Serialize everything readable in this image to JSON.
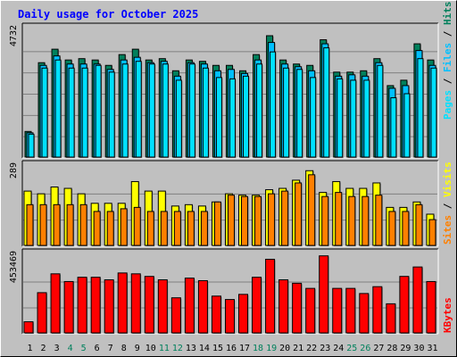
{
  "title": "Daily usage for October 2025",
  "legend": {
    "top": {
      "pages": "Pages",
      "sep1": " / ",
      "files": "Files",
      "sep2": " / ",
      "hits": "Hits"
    },
    "middle": {
      "sites": "Sites",
      "sep": " / ",
      "visits": "Visits"
    },
    "bottom": {
      "kbytes": "KBytes"
    }
  },
  "colors": {
    "background": "#c0c0c0",
    "plot": "#c0c0c0",
    "title": "#0000ff",
    "hits": "#00805c",
    "files": "#00c0ff",
    "pages": "#00e0ff",
    "visits": "#ffff00",
    "sites": "#ff8000",
    "kbytes": "#ff0000",
    "weekday_label": "#000000",
    "weekend_label": "#00805c"
  },
  "chart_data": [
    {
      "type": "bar",
      "name": "hits-files-pages",
      "ymax_label": "4732",
      "ylim": [
        0,
        4732
      ],
      "categories": [
        "1",
        "2",
        "3",
        "4",
        "5",
        "6",
        "7",
        "8",
        "9",
        "10",
        "11",
        "12",
        "13",
        "14",
        "15",
        "16",
        "17",
        "18",
        "19",
        "20",
        "21",
        "22",
        "23",
        "24",
        "25",
        "26",
        "27",
        "28",
        "29",
        "30",
        "31"
      ],
      "weekend_days": [
        4,
        5,
        11,
        12,
        18,
        19,
        25,
        26
      ],
      "series": [
        {
          "name": "Hits",
          "values": [
            950,
            3500,
            4000,
            3600,
            3650,
            3600,
            3400,
            3800,
            4000,
            3600,
            3650,
            3200,
            3600,
            3550,
            3400,
            3400,
            3200,
            3800,
            4500,
            3600,
            3450,
            3400,
            4350,
            3150,
            3150,
            3200,
            3650,
            2650,
            2850,
            4200,
            3600
          ]
        },
        {
          "name": "Files",
          "values": [
            900,
            3400,
            3750,
            3450,
            3450,
            3450,
            3250,
            3600,
            3700,
            3500,
            3550,
            3000,
            3500,
            3450,
            3200,
            3250,
            3100,
            3600,
            4250,
            3450,
            3350,
            3200,
            4200,
            3000,
            3050,
            3000,
            3500,
            2550,
            2650,
            3950,
            3400
          ]
        },
        {
          "name": "Pages",
          "values": [
            850,
            3300,
            3600,
            3300,
            3300,
            3400,
            3150,
            3450,
            3550,
            3450,
            3450,
            2850,
            3450,
            3300,
            2950,
            2900,
            3000,
            3450,
            3900,
            3300,
            3250,
            2950,
            4050,
            2900,
            2850,
            2850,
            3400,
            2200,
            2350,
            3650,
            3300
          ]
        }
      ]
    },
    {
      "type": "bar",
      "name": "visits-sites",
      "ymax_label": "289",
      "ylim": [
        0,
        289
      ],
      "categories": [
        "1",
        "2",
        "3",
        "4",
        "5",
        "6",
        "7",
        "8",
        "9",
        "10",
        "11",
        "12",
        "13",
        "14",
        "15",
        "16",
        "17",
        "18",
        "19",
        "20",
        "21",
        "22",
        "23",
        "24",
        "25",
        "26",
        "27",
        "28",
        "29",
        "30",
        "31"
      ],
      "series": [
        {
          "name": "Visits",
          "values": [
            200,
            190,
            215,
            210,
            190,
            155,
            155,
            155,
            235,
            200,
            200,
            145,
            150,
            145,
            160,
            190,
            185,
            185,
            205,
            210,
            240,
            275,
            195,
            235,
            210,
            210,
            230,
            140,
            140,
            160,
            115
          ]
        },
        {
          "name": "Sites",
          "values": [
            150,
            150,
            150,
            150,
            150,
            125,
            125,
            135,
            140,
            125,
            125,
            125,
            125,
            125,
            160,
            185,
            180,
            180,
            190,
            200,
            230,
            260,
            180,
            195,
            180,
            180,
            185,
            125,
            125,
            150,
            95
          ]
        }
      ]
    },
    {
      "type": "bar",
      "name": "kbytes",
      "ymax_label": "453469",
      "ylim": [
        0,
        453469
      ],
      "categories": [
        "1",
        "2",
        "3",
        "4",
        "5",
        "6",
        "7",
        "8",
        "9",
        "10",
        "11",
        "12",
        "13",
        "14",
        "15",
        "16",
        "17",
        "18",
        "19",
        "20",
        "21",
        "22",
        "23",
        "24",
        "25",
        "26",
        "27",
        "28",
        "29",
        "30",
        "31"
      ],
      "series": [
        {
          "name": "KBytes",
          "values": [
            65000,
            235000,
            345000,
            300000,
            325000,
            325000,
            310000,
            350000,
            345000,
            330000,
            310000,
            205000,
            320000,
            305000,
            215000,
            195000,
            225000,
            325000,
            430000,
            310000,
            290000,
            260000,
            450000,
            260000,
            260000,
            230000,
            270000,
            170000,
            330000,
            385000,
            300000
          ]
        }
      ]
    }
  ]
}
